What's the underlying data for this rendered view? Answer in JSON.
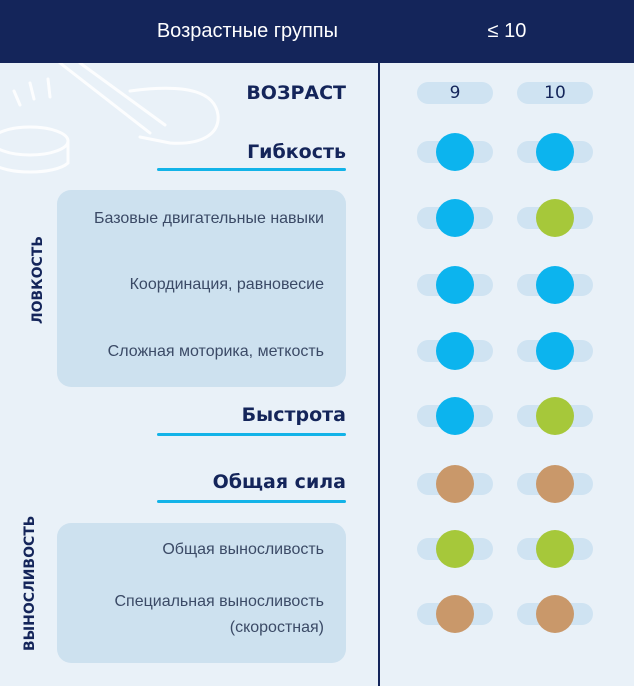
{
  "header": {
    "title": "Возрастные группы",
    "age_group": "≤ 10"
  },
  "ages": [
    "9",
    "10"
  ],
  "rows": {
    "age_label": "ВОЗРАСТ",
    "flexibility": "Гибкость",
    "speed": "Быстрота",
    "strength": "Общая сила"
  },
  "agility": {
    "vertical_label": "ЛОВКОСТЬ",
    "items": [
      "Базовые двигательные навыки",
      "Координация, равновесие",
      "Сложная моторика, меткость"
    ]
  },
  "endurance": {
    "vertical_label": "ВЫНОСЛИВОСТЬ",
    "items": [
      "Общая выносливость",
      "Специальная выносливость",
      "(скоростная)"
    ]
  },
  "colors": {
    "blue": "#0cb4ee",
    "green": "#a6c83a",
    "brown": "#c9986a",
    "header_bg": "#14255a",
    "accent_line": "#12b3e8"
  },
  "indicators": [
    {
      "row": "Гибкость",
      "values": [
        "blue",
        "blue"
      ]
    },
    {
      "row": "Базовые двигательные навыки",
      "values": [
        "blue",
        "green"
      ]
    },
    {
      "row": "Координация, равновесие",
      "values": [
        "blue",
        "blue"
      ]
    },
    {
      "row": "Сложная моторика, меткость",
      "values": [
        "blue",
        "blue"
      ]
    },
    {
      "row": "Быстрота",
      "values": [
        "blue",
        "green"
      ]
    },
    {
      "row": "Общая сила",
      "values": [
        "brown",
        "brown"
      ]
    },
    {
      "row": "Общая выносливость",
      "values": [
        "green",
        "green"
      ]
    },
    {
      "row": "Специальная выносливость (скоростная)",
      "values": [
        "brown",
        "brown"
      ]
    }
  ]
}
